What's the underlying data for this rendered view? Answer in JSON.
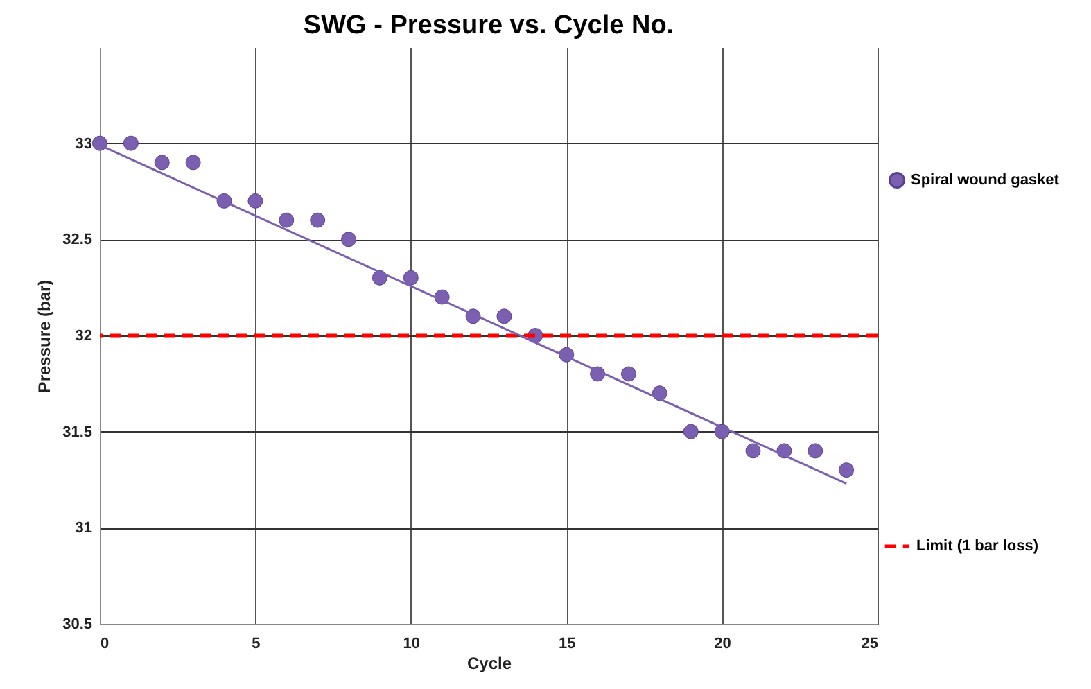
{
  "chart_data": {
    "type": "scatter",
    "title": "SWG - Pressure vs. Cycle No.",
    "xlabel": "Cycle",
    "ylabel": "Pressure (bar)",
    "x": [
      0,
      1,
      2,
      3,
      4,
      5,
      6,
      7,
      8,
      9,
      10,
      11,
      12,
      13,
      14,
      15,
      16,
      17,
      18,
      19,
      20,
      21,
      22,
      23,
      24
    ],
    "series": [
      {
        "name": "Spiral wound gasket",
        "type": "scatter",
        "color": "#7b5fb0",
        "values": [
          33,
          33,
          32.9,
          32.9,
          32.7,
          32.7,
          32.6,
          32.6,
          32.5,
          32.3,
          32.3,
          32.2,
          32.1,
          32.1,
          32.0,
          31.9,
          31.8,
          31.8,
          31.7,
          31.5,
          31.5,
          31.4,
          31.4,
          31.4,
          31.3
        ]
      },
      {
        "type": "line",
        "marker": "none",
        "color": "#7b5fb0",
        "x": [
          0,
          24
        ],
        "values": [
          32.99,
          31.23
        ]
      }
    ],
    "ref_lines": [
      {
        "axis": "y",
        "value": 32,
        "label": "Limit (1 bar loss)",
        "color": "#ff0000",
        "line_style": "dashed"
      }
    ],
    "xlim": [
      0,
      25
    ],
    "xticks": [
      0,
      5,
      10,
      15,
      20,
      25
    ],
    "ylim": [
      30.5,
      33.5
    ],
    "yticks": [
      30.5,
      31,
      31.5,
      32,
      32.5,
      33
    ],
    "grid": true,
    "legend": "right",
    "marker": "circle"
  }
}
